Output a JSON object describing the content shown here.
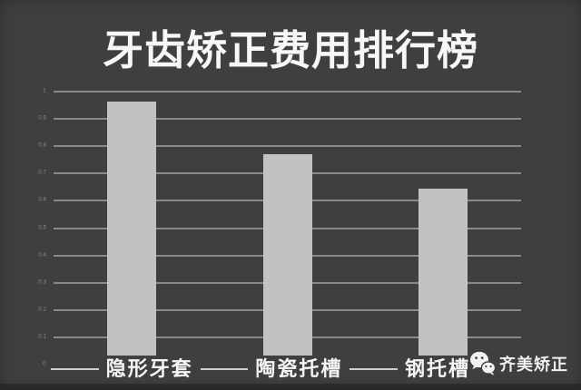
{
  "page": {
    "background": "#3f3f3f"
  },
  "title": "牙齿矫正费用排行榜",
  "watermark": {
    "icon": "wechat-icon",
    "label": "齐美矫正"
  },
  "colors": {
    "background": "#3f3f3f",
    "bar": "#c2c2c2",
    "gridline": "#9c9c9c",
    "axis_dash": "#cfcfcf",
    "title_text": "#f7f7f7",
    "category_text": "#f5f5f5",
    "tick_text": "#8a8a8a",
    "watermark_text": "#f0f0f0"
  },
  "chart_data": {
    "type": "bar",
    "title": "牙齿矫正费用排行榜",
    "categories": [
      "隐形牙套",
      "陶瓷托槽",
      "钢托槽"
    ],
    "values": [
      0.96,
      0.76,
      0.63
    ],
    "xlabel": "",
    "ylabel": "",
    "ylim": [
      0,
      1
    ],
    "ytick_step": 0.1,
    "ytick_labels": [
      "1",
      "0.9",
      "0.8",
      "0.7",
      "0.6",
      "0.5",
      "0.4",
      "0.3",
      "0.2",
      "0.1",
      "0"
    ],
    "grid": true,
    "legend": false,
    "bar_color": "#c2c2c2",
    "background": "#3f3f3f"
  }
}
